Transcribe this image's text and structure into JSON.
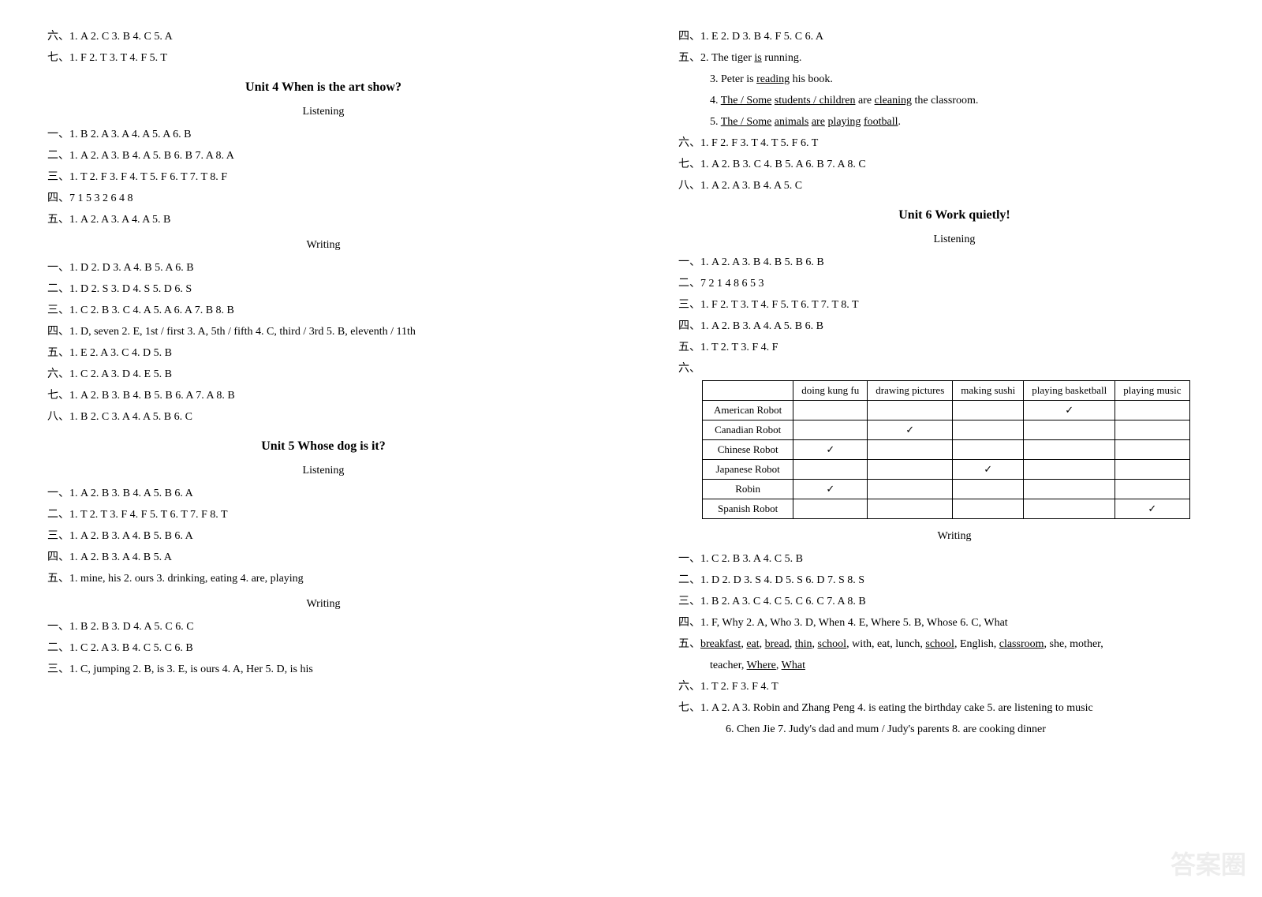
{
  "left": {
    "l1": "六、1. A   2. C   3. B   4. C   5. A",
    "l2": "七、1. F   2. T   3. T   4. F   5. T",
    "unit4_title": "Unit 4   When is the art show?",
    "listening_label": "Listening",
    "u4_listen": [
      "一、1. B   2. A   3. A   4. A   5. A   6. B",
      "二、1. A   2. A   3. B   4. A   5. B   6. B   7. A   8. A",
      "三、1. T   2. F   3. F   4. T   5. F   6. T   7. T   8. F",
      "四、7   1   5   3   2   6   4   8",
      "五、1. A   2. A   3. A   4. A   5. B"
    ],
    "writing_label": "Writing",
    "u4_writing": [
      "一、1. D   2. D   3. A   4. B   5. A   6. B",
      "二、1. D   2. S   3. D   4. S   5. D   6. S",
      "三、1. C   2. B   3. C   4. A   5. A   6. A   7. B   8. B",
      "四、1. D, seven   2. E, 1st / first   3. A, 5th / fifth   4. C, third / 3rd   5. B, eleventh / 11th",
      "五、1. E   2. A   3. C   4. D   5. B",
      "六、1. C   2. A   3. D   4. E   5. B",
      "七、1. A   2. B   3. B   4. B   5. B   6. A   7. A   8. B",
      "八、1. B   2. C   3. A   4. A   5. B   6. C"
    ],
    "unit5_title": "Unit 5   Whose dog is it?",
    "u5_listen": [
      "一、1. A   2. B   3. B   4. A   5. B   6. A",
      "二、1. T   2. T   3. F   4. F   5. T   6. T   7. F   8. T",
      "三、1. A   2. B   3. A   4. B   5. B   6. A",
      "四、1. A   2. B   3. A   4. B   5. A",
      "五、1. mine, his   2. ours   3. drinking, eating   4. are, playing"
    ],
    "u5_writing": [
      "一、1. B   2. B   3. D   4. A   5. C   6. C",
      "二、1. C   2. A   3. B   4. C   5. C   6. B",
      "三、1. C, jumping   2. B, is   3. E, is ours   4. A, Her   5. D, is his"
    ]
  },
  "right": {
    "r1": "四、1. E   2. D   3. B   4. F   5. C   6. A",
    "r2_prefix": "五、2. The tiger ",
    "r2_u1": "is",
    "r2_suffix": " running.",
    "r3_prefix": "3. Peter is ",
    "r3_u1": "reading",
    "r3_suffix": " his book.",
    "r4_a": "4. ",
    "r4_u1": "The / Some",
    "r4_b": " ",
    "r4_u2": "students / children",
    "r4_c": " are ",
    "r4_u3": "cleaning",
    "r4_d": " the classroom.",
    "r5_a": "5. ",
    "r5_u1": "The / Some",
    "r5_b": " ",
    "r5_u2": "animals",
    "r5_c": " ",
    "r5_u3": "are",
    "r5_d": " ",
    "r5_u4": "playing",
    "r5_e": " ",
    "r5_u5": "football",
    "r5_f": ".",
    "r6": "六、1. F   2. F   3. T   4. T   5. F   6. T",
    "r7": "七、1. A   2. B   3. C   4. B   5. A   6. B   7. A   8. C",
    "r8": "八、1. A   2. A   3. B   4. A   5. C",
    "unit6_title": "Unit 6   Work quietly!",
    "listening_label": "Listening",
    "u6_listen": [
      "一、1. A   2. A   3. B   4. B   5. B   6. B",
      "二、7   2   1   4   8   6   5   3",
      "三、1. F   2. T   3. T   4. F   5. T   6. T   7. T   8. T",
      "四、1. A   2. B   3. A   4. A   5. B   6. B",
      "五、1. T   2. T   3. F   4. F"
    ],
    "table_prefix": "六、",
    "table": {
      "headers": [
        "",
        "doing kung fu",
        "drawing pictures",
        "making sushi",
        "playing basketball",
        "playing music"
      ],
      "rows": [
        [
          "American Robot",
          "",
          "",
          "",
          "✓",
          ""
        ],
        [
          "Canadian Robot",
          "",
          "✓",
          "",
          "",
          ""
        ],
        [
          "Chinese Robot",
          "✓",
          "",
          "",
          "",
          ""
        ],
        [
          "Japanese Robot",
          "",
          "",
          "✓",
          "",
          ""
        ],
        [
          "Robin",
          "✓",
          "",
          "",
          "",
          ""
        ],
        [
          "Spanish Robot",
          "",
          "",
          "",
          "",
          "✓"
        ]
      ]
    },
    "writing_label": "Writing",
    "u6_writing_1": "一、1. C   2. B   3. A   4. C   5. B",
    "u6_writing_2": "二、1. D   2. D   3. S   4. D   5. S   6. D   7. S   8. S",
    "u6_writing_3": "三、1. B   2. A   3. C   4. C   5. C   6. C   7. A   8. B",
    "u6_writing_4": "四、1. F, Why   2. A, Who   3. D, When   4. E, Where   5. B, Whose   6. C, What",
    "u6_w5_prefix": "五、",
    "u6_w5_words": [
      "breakfast",
      "eat",
      "bread",
      "thin",
      "school"
    ],
    "u6_w5_mid1": ", with, eat, lunch, ",
    "u6_w5_words2": [
      "school"
    ],
    "u6_w5_mid2": ", English, ",
    "u6_w5_words3": [
      "classroom"
    ],
    "u6_w5_mid3": ", she, mother,",
    "u6_w5_line2_pre": "teacher, ",
    "u6_w5_line2_words": [
      "Where",
      "What"
    ],
    "u6_writing_6": "六、1. T   2. F   3. F   4. T",
    "u6_w7_a": "七、1. A   2. A   3. Robin and Zhang Peng   4. is eating the birthday cake   5. are listening to music",
    "u6_w7_b": "6. Chen Jie   7. Judy's dad and mum / Judy's parents   8. are cooking dinner"
  },
  "watermark": "答案圈"
}
